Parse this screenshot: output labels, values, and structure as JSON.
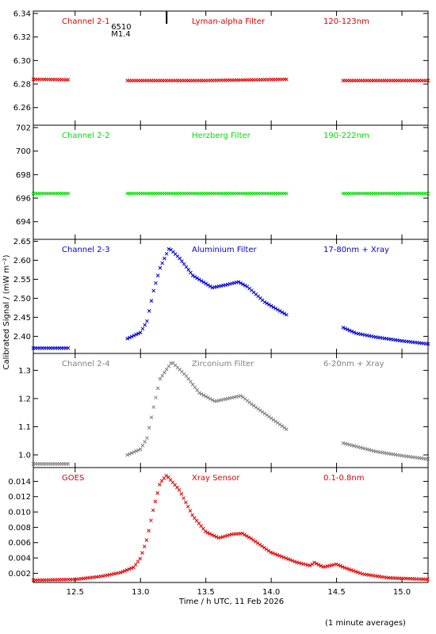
{
  "figure": {
    "xlabel": "Time / h UTC, 11 Feb 2026",
    "ylabel": "Calibrated Signal / (mW m⁻²)",
    "footnote": "(1 minute averages)",
    "marker": {
      "label_1": "6510",
      "label_2": "M1.4",
      "time": 13.2
    }
  },
  "chart_data": [
    {
      "type": "scatter",
      "color": "#e00000",
      "label_left": "Channel 2-1",
      "label_mid": "Lyman-alpha Filter",
      "label_right": "120-123nm",
      "xlim": [
        12.18,
        15.2
      ],
      "ylim": [
        6.245,
        6.342
      ],
      "yticks": [
        6.26,
        6.28,
        6.3,
        6.32,
        6.34
      ],
      "ytick_decimals": 2,
      "segments": [
        [
          12.18,
          12.45
        ],
        [
          12.9,
          14.12
        ],
        [
          14.55,
          15.2
        ]
      ],
      "points": [
        [
          12.2,
          6.284
        ],
        [
          12.9,
          6.283
        ],
        [
          13.5,
          6.283
        ],
        [
          14.12,
          6.284
        ],
        [
          14.55,
          6.283
        ],
        [
          15.2,
          6.283
        ]
      ]
    },
    {
      "type": "scatter",
      "color": "#00e000",
      "label_left": "Channel 2-2",
      "label_mid": "Herzberg Filter",
      "label_right": "190-222nm",
      "xlim": [
        12.18,
        15.2
      ],
      "ylim": [
        692.5,
        702.2
      ],
      "yticks": [
        694,
        696,
        698,
        700,
        702
      ],
      "ytick_decimals": 0,
      "segments": [
        [
          12.18,
          12.45
        ],
        [
          12.9,
          14.12
        ],
        [
          14.55,
          15.2
        ]
      ],
      "points": [
        [
          12.2,
          696.4
        ],
        [
          12.9,
          696.4
        ],
        [
          13.5,
          696.4
        ],
        [
          14.12,
          696.4
        ],
        [
          14.55,
          696.4
        ],
        [
          15.2,
          696.4
        ]
      ]
    },
    {
      "type": "scatter",
      "color": "#0000d0",
      "label_left": "Channel 2-3",
      "label_mid": "Aluminium Filter",
      "label_right": "17-80nm + Xray",
      "xlim": [
        12.18,
        15.2
      ],
      "ylim": [
        2.355,
        2.655
      ],
      "yticks": [
        2.4,
        2.45,
        2.5,
        2.55,
        2.6,
        2.65
      ],
      "ytick_decimals": 2,
      "segments": [
        [
          12.18,
          12.45
        ],
        [
          12.9,
          14.12
        ],
        [
          14.55,
          15.2
        ]
      ],
      "points": [
        [
          12.2,
          2.369
        ],
        [
          12.45,
          2.369
        ],
        [
          12.9,
          2.394
        ],
        [
          13.0,
          2.41
        ],
        [
          13.05,
          2.44
        ],
        [
          13.1,
          2.52
        ],
        [
          13.15,
          2.58
        ],
        [
          13.22,
          2.632
        ],
        [
          13.3,
          2.605
        ],
        [
          13.4,
          2.56
        ],
        [
          13.55,
          2.528
        ],
        [
          13.65,
          2.535
        ],
        [
          13.75,
          2.543
        ],
        [
          13.82,
          2.53
        ],
        [
          13.95,
          2.49
        ],
        [
          14.12,
          2.456
        ],
        [
          14.55,
          2.423
        ],
        [
          14.65,
          2.408
        ],
        [
          14.8,
          2.398
        ],
        [
          15.0,
          2.388
        ],
        [
          15.2,
          2.38
        ]
      ]
    },
    {
      "type": "scatter",
      "color": "#808080",
      "label_left": "Channel 2-4",
      "label_mid": "Zirconium Filter",
      "label_right": "6-20nm + Xray",
      "xlim": [
        12.18,
        15.2
      ],
      "ylim": [
        0.955,
        1.36
      ],
      "yticks": [
        1.0,
        1.1,
        1.2,
        1.3
      ],
      "ytick_decimals": 1,
      "segments": [
        [
          12.18,
          12.45
        ],
        [
          12.9,
          14.12
        ],
        [
          14.55,
          15.2
        ]
      ],
      "points": [
        [
          12.2,
          0.968
        ],
        [
          12.45,
          0.968
        ],
        [
          12.9,
          1.0
        ],
        [
          13.0,
          1.02
        ],
        [
          13.05,
          1.06
        ],
        [
          13.1,
          1.17
        ],
        [
          13.15,
          1.27
        ],
        [
          13.24,
          1.33
        ],
        [
          13.35,
          1.28
        ],
        [
          13.45,
          1.22
        ],
        [
          13.57,
          1.19
        ],
        [
          13.67,
          1.2
        ],
        [
          13.77,
          1.21
        ],
        [
          13.85,
          1.18
        ],
        [
          14.0,
          1.13
        ],
        [
          14.12,
          1.09
        ],
        [
          14.55,
          1.042
        ],
        [
          14.65,
          1.03
        ],
        [
          14.8,
          1.012
        ],
        [
          15.0,
          0.997
        ],
        [
          15.2,
          0.985
        ]
      ]
    },
    {
      "type": "scatter",
      "color": "#e00000",
      "label_left": "GOES",
      "label_mid": "Xray Sensor",
      "label_right": "0.1-0.8nm",
      "xlim": [
        12.18,
        15.2
      ],
      "ylim": [
        0.0008,
        0.0158
      ],
      "yticks": [
        0.002,
        0.004,
        0.006,
        0.008,
        0.01,
        0.012,
        0.014
      ],
      "ytick_decimals": 3,
      "segments": [
        [
          12.18,
          15.2
        ]
      ],
      "points": [
        [
          12.18,
          0.0011
        ],
        [
          12.5,
          0.0012
        ],
        [
          12.7,
          0.0016
        ],
        [
          12.85,
          0.0021
        ],
        [
          12.95,
          0.0028
        ],
        [
          13.0,
          0.004
        ],
        [
          13.05,
          0.0065
        ],
        [
          13.1,
          0.0105
        ],
        [
          13.15,
          0.0138
        ],
        [
          13.2,
          0.0148
        ],
        [
          13.3,
          0.0128
        ],
        [
          13.4,
          0.0095
        ],
        [
          13.5,
          0.0074
        ],
        [
          13.6,
          0.0066
        ],
        [
          13.7,
          0.0071
        ],
        [
          13.78,
          0.0072
        ],
        [
          13.85,
          0.0065
        ],
        [
          14.0,
          0.0047
        ],
        [
          14.2,
          0.0034
        ],
        [
          14.3,
          0.003
        ],
        [
          14.33,
          0.0034
        ],
        [
          14.4,
          0.0028
        ],
        [
          14.5,
          0.0032
        ],
        [
          14.55,
          0.0028
        ],
        [
          14.7,
          0.0019
        ],
        [
          14.9,
          0.0014
        ],
        [
          15.2,
          0.0012
        ]
      ]
    }
  ],
  "xaxis": {
    "ticks": [
      12.5,
      13.0,
      13.5,
      14.0,
      14.5,
      15.0
    ],
    "tick_decimals": 1
  }
}
